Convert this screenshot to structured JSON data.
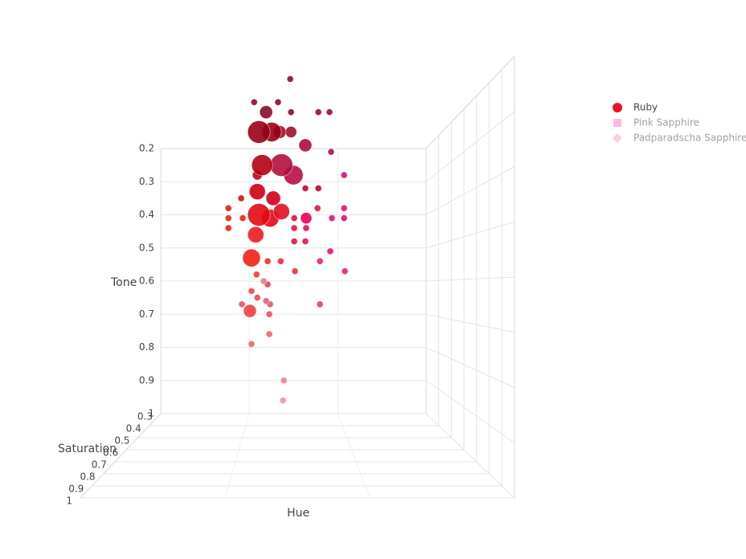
{
  "chart_data": {
    "type": "scatter3d",
    "xlabel": "Hue",
    "ylabel": "Saturation",
    "zlabel": "Tone",
    "xlim": [
      0,
      100
    ],
    "ylim": [
      0.3,
      1
    ],
    "yticks": [
      0.3,
      0.4,
      0.5,
      0.6,
      0.7,
      0.8,
      0.9,
      1
    ],
    "zlim": [
      0.2,
      1
    ],
    "zticks": [
      0.2,
      0.3,
      0.4,
      0.5,
      0.6,
      0.7,
      0.8,
      0.9,
      1
    ],
    "grid": true,
    "legend": "top-right",
    "series": [
      {
        "name": "Ruby",
        "color": "#ee1122",
        "marker": "circle",
        "visible": true,
        "x": [
          48.8,
          35.2,
          44.2,
          39.7,
          49.1,
          59.4,
          63.6,
          37.0,
          41.8,
          44.8,
          49.1,
          54.5,
          64.2,
          38.2,
          45.5,
          50,
          69.1,
          36.4,
          54.5,
          59.4,
          30.3,
          36.4,
          42.4,
          45.5,
          25.5,
          69.1,
          37.0,
          41.2,
          50.3,
          54.8,
          59.1,
          64.5,
          69.1,
          25.5,
          30.9,
          25.5,
          35.8,
          50.3,
          54.8,
          54.5,
          50.3,
          63.9,
          34.2,
          40.3,
          45.2,
          60.0,
          50.6,
          69.4,
          36.1,
          38.8,
          40.3,
          34.2,
          36.4,
          39.7,
          30.6,
          33.6,
          41.2,
          60.0,
          40.9,
          40.9,
          34.2,
          46.4,
          46.1
        ],
        "y": [
          0.3,
          0.3,
          0.3,
          0.3,
          0.3,
          0.3,
          0.3,
          0.3,
          0.3,
          0.3,
          0.3,
          0.3,
          0.3,
          0.3,
          0.3,
          0.3,
          0.3,
          0.3,
          0.3,
          0.3,
          0.3,
          0.3,
          0.3,
          0.3,
          0.3,
          0.3,
          0.3,
          0.3,
          0.3,
          0.3,
          0.3,
          0.3,
          0.3,
          0.3,
          0.3,
          0.3,
          0.3,
          0.3,
          0.3,
          0.3,
          0.3,
          0.3,
          0.3,
          0.3,
          0.3,
          0.3,
          0.3,
          0.3,
          0.3,
          0.3,
          0.3,
          0.3,
          0.3,
          0.3,
          0.3,
          0.3,
          0.3,
          0.3,
          0.3,
          0.3,
          0.3,
          0.3,
          0.3
        ],
        "z": [
          -0.01,
          0.06,
          0.06,
          0.09,
          0.09,
          0.09,
          0.09,
          0.15,
          0.15,
          0.15,
          0.15,
          0.19,
          0.21,
          0.25,
          0.25,
          0.28,
          0.28,
          0.28,
          0.32,
          0.32,
          0.35,
          0.33,
          0.35,
          0.39,
          0.38,
          0.38,
          0.4,
          0.41,
          0.41,
          0.41,
          0.38,
          0.41,
          0.41,
          0.41,
          0.41,
          0.44,
          0.46,
          0.44,
          0.44,
          0.48,
          0.48,
          0.51,
          0.53,
          0.54,
          0.54,
          0.54,
          0.57,
          0.57,
          0.58,
          0.6,
          0.61,
          0.63,
          0.65,
          0.66,
          0.67,
          0.69,
          0.67,
          0.67,
          0.7,
          0.76,
          0.79,
          0.9,
          0.96
        ],
        "size": [
          4,
          4,
          4,
          8,
          4,
          4,
          4,
          14,
          12,
          8,
          7,
          8,
          4,
          13,
          14,
          12,
          4,
          6,
          4,
          4,
          4,
          10,
          9,
          10,
          4,
          4,
          14,
          11,
          4,
          7,
          4,
          4,
          4,
          4,
          4,
          4,
          10,
          4,
          4,
          4,
          4,
          4,
          11,
          4,
          4,
          4,
          4,
          4,
          4,
          4,
          4,
          4,
          4,
          4,
          4,
          8,
          4,
          4,
          4,
          4,
          4,
          4,
          4
        ],
        "colors": [
          "#8a0a2c",
          "#8a0a2c",
          "#8a0a2c",
          "#8a0a2c",
          "#8a0a2c",
          "#9a0a40",
          "#9a0a40",
          "#990016",
          "#990016",
          "#a0102e",
          "#a0102e",
          "#b00c3a",
          "#b00c55",
          "#b3000f",
          "#b0103f",
          "#b80e48",
          "#d4107a",
          "#c0001a",
          "#c80030",
          "#c8003a",
          "#d41010",
          "#d00010",
          "#d00018",
          "#e0101e",
          "#e81a10",
          "#e0107a",
          "#e00a14",
          "#e00a14",
          "#e0103a",
          "#e8005a",
          "#e0104a",
          "#e01078",
          "#e01078",
          "#f02010",
          "#f02010",
          "#f02010",
          "#ee1a20",
          "#e8103a",
          "#e8104a",
          "#e8104a",
          "#e8103a",
          "#e81078",
          "#f02018",
          "#f02a30",
          "#f02a3a",
          "#f01880",
          "#f02a40",
          "#f01880",
          "#f03a30",
          "#e87a80",
          "#f04050",
          "#f04848",
          "#f04848",
          "#e06070",
          "#f05050",
          "#f04040",
          "#f05060",
          "#f0308a",
          "#f05060",
          "#f06070",
          "#f06070",
          "#f58090",
          "#f590a0"
        ]
      },
      {
        "name": "Pink Sapphire",
        "color": "#f078c8",
        "marker": "square",
        "visible": false
      },
      {
        "name": "Padparadscha Sapphire",
        "color": "#f7a0b0",
        "marker": "diamond",
        "visible": false
      }
    ]
  }
}
